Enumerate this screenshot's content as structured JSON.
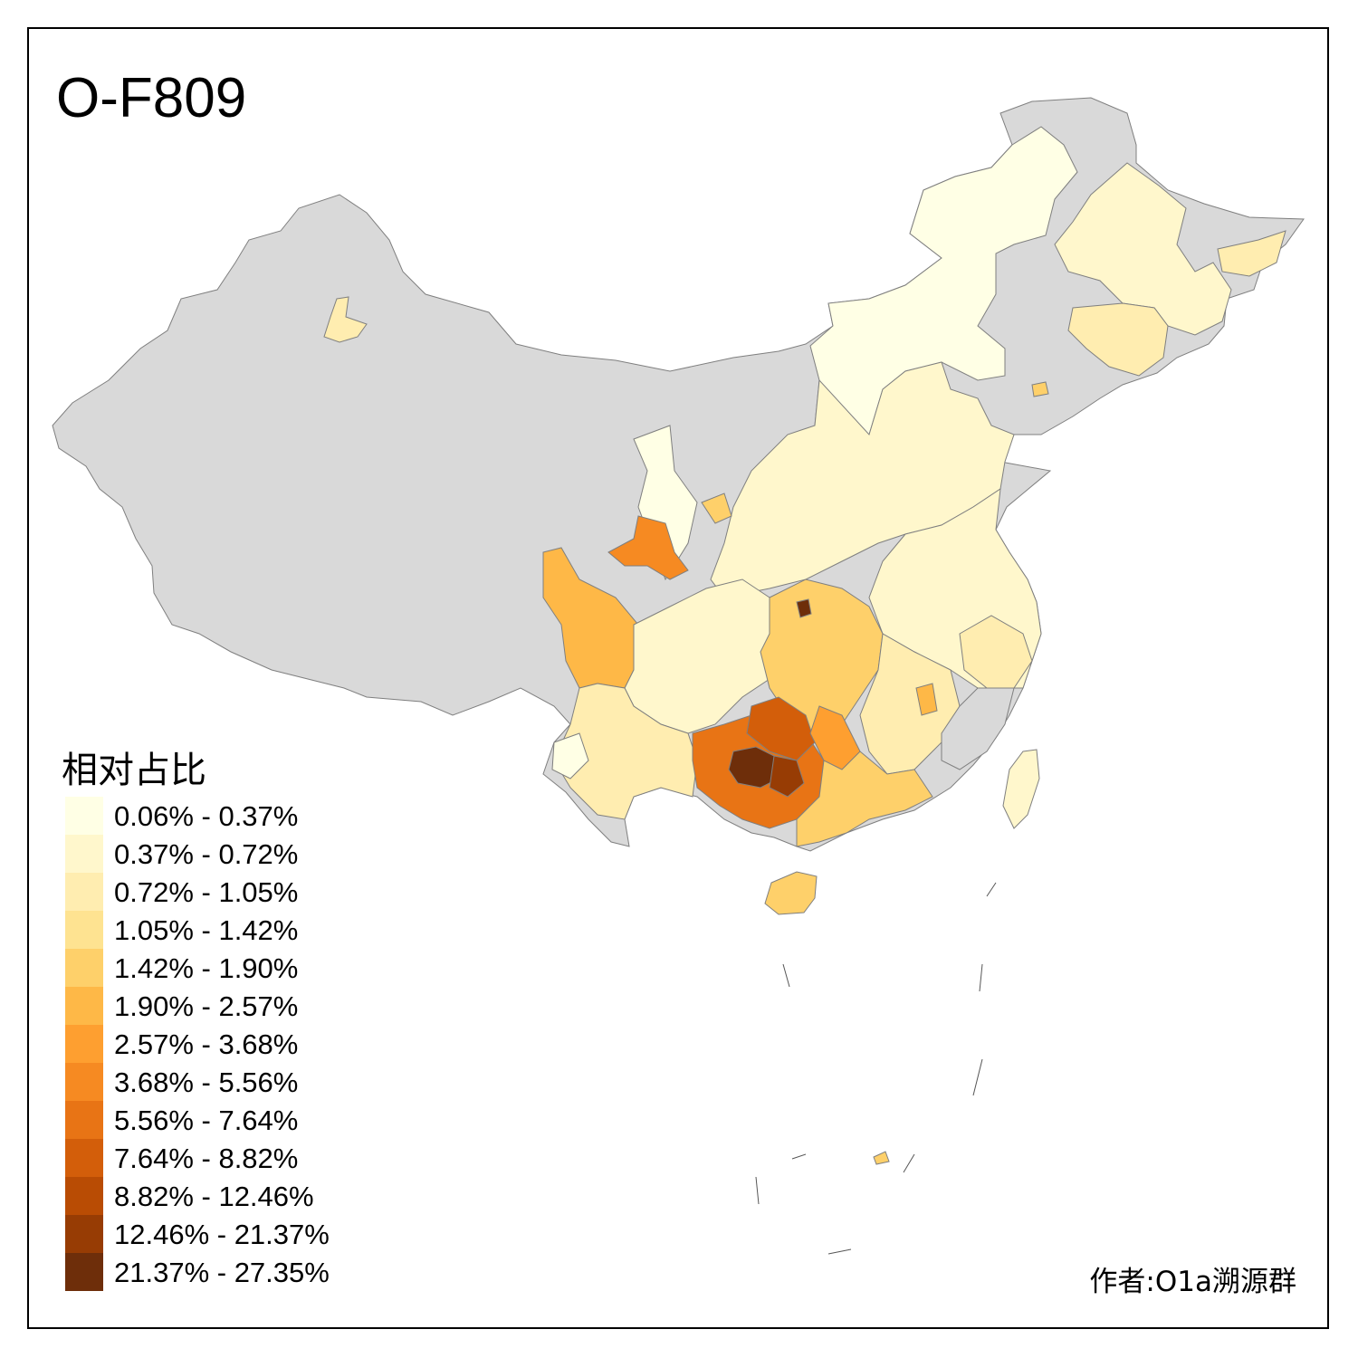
{
  "title": "O-F809",
  "legend": {
    "title": "相对占比",
    "bins": [
      {
        "label": "0.06% - 0.37%",
        "color": "#FFFFE5"
      },
      {
        "label": "0.37% - 0.72%",
        "color": "#FFF7CC"
      },
      {
        "label": "0.72% - 1.05%",
        "color": "#FFEDB0"
      },
      {
        "label": "1.05% - 1.42%",
        "color": "#FEE391"
      },
      {
        "label": "1.42% - 1.90%",
        "color": "#FED06A"
      },
      {
        "label": "1.90% - 2.57%",
        "color": "#FEB847"
      },
      {
        "label": "2.57% - 3.68%",
        "color": "#FE9F30"
      },
      {
        "label": "3.68% - 5.56%",
        "color": "#F68A22"
      },
      {
        "label": "5.56% - 7.64%",
        "color": "#E87415"
      },
      {
        "label": "7.64% - 8.82%",
        "color": "#D35E0A"
      },
      {
        "label": "8.82% - 12.46%",
        "color": "#B94C04"
      },
      {
        "label": "12.46% - 21.37%",
        "color": "#973C04"
      },
      {
        "label": "21.37% - 27.35%",
        "color": "#6E2E0A"
      }
    ]
  },
  "author": "作者:O1a溯源群",
  "colors": {
    "no_data": "#D9D9D9",
    "border": "#7F7F7F",
    "frame": "#000000"
  }
}
